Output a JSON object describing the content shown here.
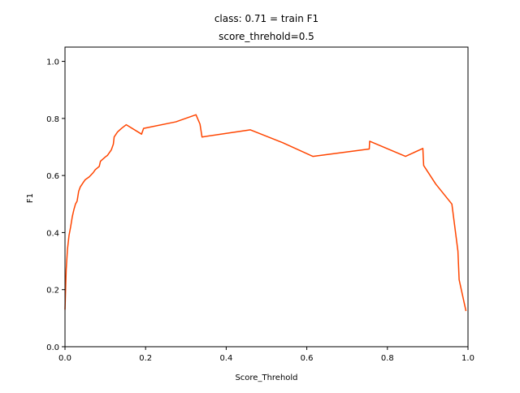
{
  "chart_data": {
    "type": "line",
    "title_line1": "class: 0.71 = train F1",
    "title_line2": "score_threhold=0.5",
    "xlabel": "Score_Threhold",
    "ylabel": "F1",
    "xlim": [
      0.0,
      1.0
    ],
    "ylim": [
      0.0,
      1.05
    ],
    "xticks": [
      0.0,
      0.2,
      0.4,
      0.6,
      0.8,
      1.0
    ],
    "xtick_labels": [
      "0.0",
      "0.2",
      "0.4",
      "0.6",
      "0.8",
      "1.0"
    ],
    "yticks": [
      0.0,
      0.2,
      0.4,
      0.6,
      0.8,
      1.0
    ],
    "ytick_labels": [
      "0.0",
      "0.2",
      "0.4",
      "0.6",
      "0.8",
      "1.0"
    ],
    "grid": false,
    "series": [
      {
        "color": "#ff4500",
        "x": [
          0.0,
          0.003,
          0.006,
          0.01,
          0.014,
          0.018,
          0.022,
          0.026,
          0.03,
          0.034,
          0.038,
          0.045,
          0.05,
          0.06,
          0.07,
          0.075,
          0.085,
          0.088,
          0.1,
          0.105,
          0.115,
          0.12,
          0.122,
          0.13,
          0.14,
          0.152,
          0.19,
          0.195,
          0.275,
          0.325,
          0.335,
          0.34,
          0.46,
          0.54,
          0.615,
          0.755,
          0.756,
          0.845,
          0.888,
          0.89,
          0.92,
          0.96,
          0.975,
          0.978,
          0.995
        ],
        "y": [
          0.13,
          0.27,
          0.34,
          0.39,
          0.42,
          0.455,
          0.48,
          0.5,
          0.51,
          0.545,
          0.56,
          0.575,
          0.585,
          0.595,
          0.61,
          0.62,
          0.632,
          0.65,
          0.665,
          0.67,
          0.69,
          0.71,
          0.735,
          0.752,
          0.765,
          0.778,
          0.745,
          0.765,
          0.788,
          0.813,
          0.78,
          0.735,
          0.76,
          0.715,
          0.667,
          0.693,
          0.72,
          0.667,
          0.695,
          0.635,
          0.57,
          0.5,
          0.335,
          0.235,
          0.125
        ]
      }
    ]
  }
}
